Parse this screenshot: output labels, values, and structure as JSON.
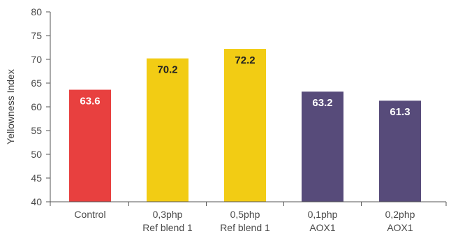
{
  "chart_data": {
    "type": "bar",
    "title": "",
    "xlabel": "",
    "ylabel": "Yellowness Index",
    "ylim": [
      40,
      80
    ],
    "yticks": [
      40,
      45,
      50,
      55,
      60,
      65,
      70,
      75,
      80
    ],
    "grid": false,
    "categories": [
      {
        "line1": "Control",
        "line2": ""
      },
      {
        "line1": "0,3php",
        "line2": "Ref blend 1"
      },
      {
        "line1": "0,5php",
        "line2": "Ref blend 1"
      },
      {
        "line1": "0,1php",
        "line2": "AOX1"
      },
      {
        "line1": "0,2php",
        "line2": "AOX1"
      }
    ],
    "values": [
      63.6,
      70.2,
      72.2,
      63.2,
      61.3
    ],
    "value_labels": [
      "63.6",
      "70.2",
      "72.2",
      "63.2",
      "61.3"
    ],
    "bar_colors": [
      "#e8403f",
      "#f2cc14",
      "#f2cc14",
      "#574b7a",
      "#574b7a"
    ],
    "label_colors": [
      "#ffffff",
      "#222222",
      "#222222",
      "#ffffff",
      "#ffffff"
    ],
    "axis_color": "#555555"
  }
}
